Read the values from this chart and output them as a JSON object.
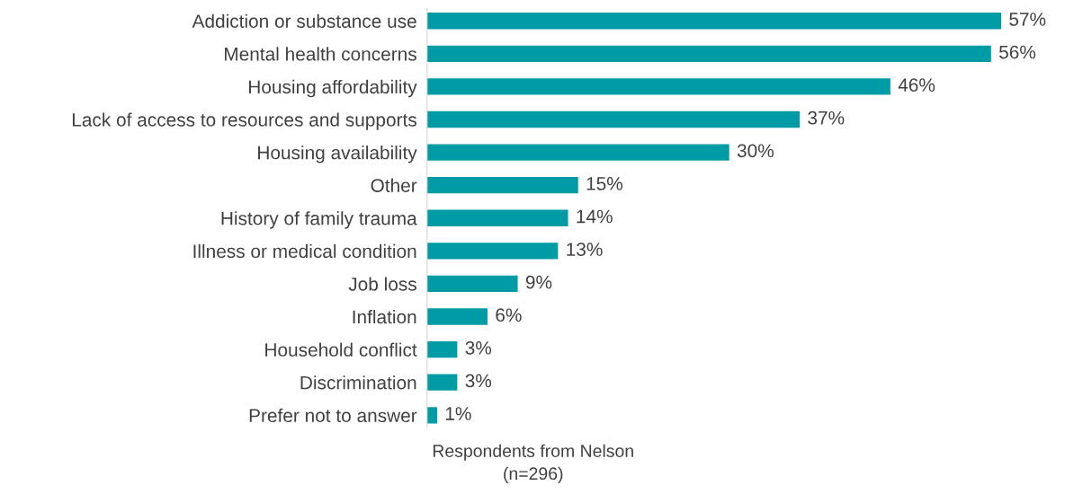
{
  "chart_data": {
    "type": "bar",
    "orientation": "horizontal",
    "xlabel": "Respondents from Nelson\n(n=296)",
    "tick_labels": "y",
    "grid": false,
    "legend": false,
    "categories": [
      "Addiction or substance use",
      "Mental health concerns",
      "Housing affordability",
      "Lack of access to resources and supports",
      "Housing availability",
      "Other",
      "History of family trauma",
      "Illness or medical condition",
      "Job loss",
      "Inflation",
      "Household conflict",
      "Discrimination",
      "Prefer not to answer"
    ],
    "values": [
      57,
      56,
      46,
      37,
      30,
      15,
      14,
      13,
      9,
      6,
      3,
      3,
      1
    ],
    "value_labels": [
      "57%",
      "56%",
      "46%",
      "37%",
      "30%",
      "15%",
      "14%",
      "13%",
      "9%",
      "6%",
      "3%",
      "3%",
      "1%"
    ],
    "color": "#009ca6"
  }
}
